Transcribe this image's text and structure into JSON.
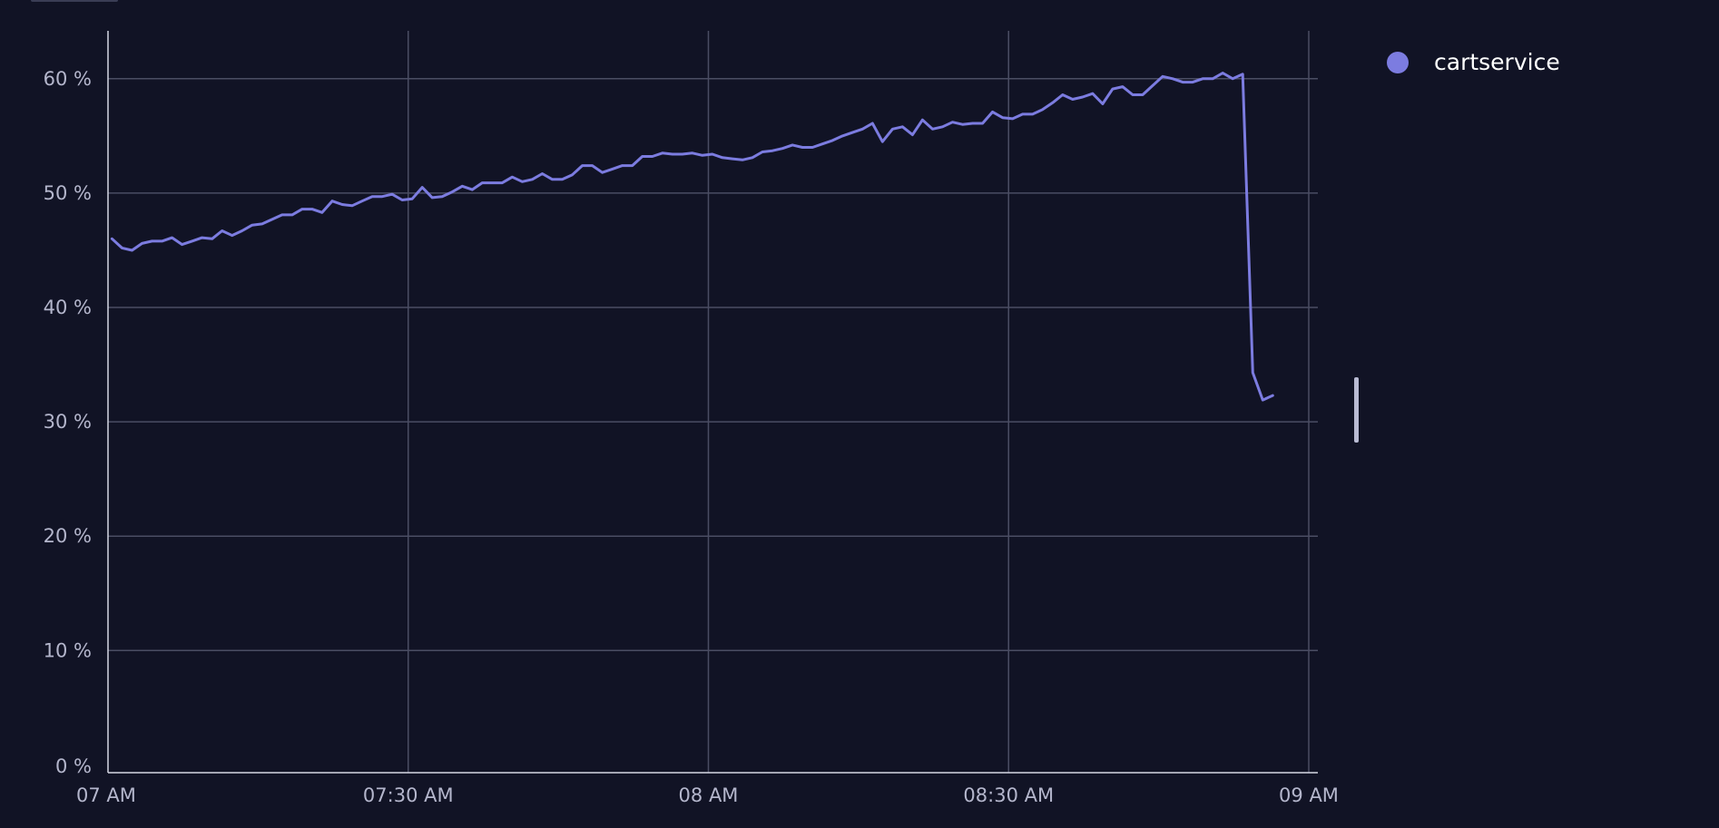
{
  "chart_data": {
    "type": "line",
    "title": "",
    "xlabel": "",
    "ylabel": "",
    "x_ticks": [
      "07 AM",
      "07:30 AM",
      "08 AM",
      "08:30 AM",
      "09 AM"
    ],
    "y_ticks": [
      "0 %",
      "10 %",
      "20 %",
      "30 %",
      "40 %",
      "50 %",
      "60 %"
    ],
    "y_tick_values": [
      0,
      10,
      20,
      30,
      40,
      50,
      60
    ],
    "ylim": [
      0,
      63
    ],
    "xlim_minutes": [
      0,
      120
    ],
    "grid": true,
    "legend_position": "top-right",
    "series": [
      {
        "name": "cartservice",
        "color": "#7c7ce0",
        "x_minutes": [
          0.4,
          1.4,
          2.4,
          3.4,
          4.4,
          5.4,
          6.4,
          7.4,
          8.4,
          9.4,
          10.4,
          11.4,
          12.4,
          13.4,
          14.4,
          15.4,
          16.4,
          17.4,
          18.4,
          19.4,
          20.4,
          21.4,
          22.4,
          23.4,
          24.4,
          25.4,
          26.4,
          27.4,
          28.4,
          29.4,
          30.4,
          31.4,
          32.4,
          33.4,
          34.4,
          35.4,
          36.4,
          37.4,
          38.4,
          39.4,
          40.4,
          41.4,
          42.4,
          43.4,
          44.4,
          45.4,
          46.4,
          47.4,
          48.4,
          49.4,
          50.4,
          51.4,
          52.4,
          53.4,
          54.4,
          55.4,
          56.4,
          57.4,
          58.4,
          59.4,
          60.4,
          61.4,
          62.4,
          63.4,
          64.4,
          65.4,
          66.4,
          67.4,
          68.4,
          69.4,
          70.4,
          71.4,
          72.4,
          73.4,
          74.4,
          75.4,
          76.4,
          77.4,
          78.4,
          79.4,
          80.4,
          81.4,
          82.4,
          83.4,
          84.4,
          85.4,
          86.4,
          87.4,
          88.4,
          89.4,
          90.4,
          91.4,
          92.4,
          93.4,
          94.4,
          95.4,
          96.4,
          97.4,
          98.4,
          99.4,
          100.4,
          101.4,
          102.4,
          103.4,
          104.4,
          105.4,
          106.4,
          107.4,
          108.4,
          109.4,
          110.4,
          111.4,
          112.4,
          113.4,
          114.4,
          115.4,
          116.4
        ],
        "values": [
          46.0,
          45.2,
          45.0,
          45.6,
          45.8,
          45.8,
          46.1,
          45.5,
          45.8,
          46.1,
          46.0,
          46.7,
          46.3,
          46.7,
          47.2,
          47.3,
          47.7,
          48.1,
          48.1,
          48.6,
          48.6,
          48.3,
          49.3,
          49.0,
          48.9,
          49.3,
          49.7,
          49.7,
          49.9,
          49.4,
          49.5,
          50.5,
          49.6,
          49.7,
          50.1,
          50.6,
          50.3,
          50.9,
          50.9,
          50.9,
          51.4,
          51.0,
          51.2,
          51.7,
          51.2,
          51.2,
          51.6,
          52.4,
          52.4,
          51.8,
          52.1,
          52.4,
          52.4,
          53.2,
          53.2,
          53.5,
          53.4,
          53.4,
          53.5,
          53.3,
          53.4,
          53.1,
          53.0,
          52.9,
          53.1,
          53.6,
          53.7,
          53.9,
          54.2,
          54.0,
          54.0,
          54.3,
          54.6,
          55.0,
          55.3,
          55.6,
          56.1,
          54.5,
          55.6,
          55.8,
          55.1,
          56.4,
          55.6,
          55.8,
          56.2,
          56.0,
          56.1,
          56.1,
          57.1,
          56.6,
          56.5,
          56.9,
          56.9,
          57.3,
          57.9,
          58.6,
          58.2,
          58.4,
          58.7,
          57.8,
          59.1,
          59.3,
          58.6,
          58.6,
          59.4,
          60.2,
          60.0,
          59.7,
          59.7,
          60.0,
          60.0,
          60.5,
          60.0,
          60.4,
          34.3,
          31.9,
          32.3
        ]
      }
    ]
  }
}
